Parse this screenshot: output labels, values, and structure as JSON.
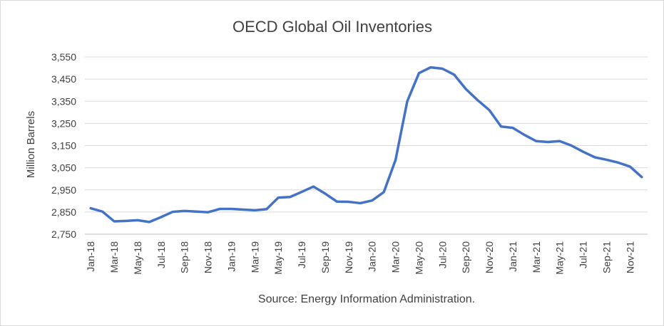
{
  "chart_data": {
    "type": "line",
    "title": "OECD Global Oil Inventories",
    "ylabel": "Million Barrels",
    "xlabel": "",
    "source": "Source: Energy Information Administration.",
    "ylim": [
      2750,
      3550
    ],
    "yticks": [
      2750,
      2850,
      2950,
      3050,
      3150,
      3250,
      3350,
      3450,
      3550
    ],
    "ytick_labels": [
      "2,750",
      "2,850",
      "2,950",
      "3,050",
      "3,150",
      "3,250",
      "3,350",
      "3,450",
      "3,550"
    ],
    "x": [
      "Jan-18",
      "Feb-18",
      "Mar-18",
      "Apr-18",
      "May-18",
      "Jun-18",
      "Jul-18",
      "Aug-18",
      "Sep-18",
      "Oct-18",
      "Nov-18",
      "Dec-18",
      "Jan-19",
      "Feb-19",
      "Mar-19",
      "Apr-19",
      "May-19",
      "Jun-19",
      "Jul-19",
      "Aug-19",
      "Sep-19",
      "Oct-19",
      "Nov-19",
      "Dec-19",
      "Jan-20",
      "Feb-20",
      "Mar-20",
      "Apr-20",
      "May-20",
      "Jun-20",
      "Jul-20",
      "Aug-20",
      "Sep-20",
      "Oct-20",
      "Nov-20",
      "Dec-20",
      "Jan-21",
      "Feb-21",
      "Mar-21",
      "Apr-21",
      "May-21",
      "Jun-21",
      "Jul-21",
      "Aug-21",
      "Sep-21",
      "Oct-21",
      "Nov-21",
      "Dec-21"
    ],
    "xtick_labels": [
      "Jan-18",
      "Mar-18",
      "May-18",
      "Jul-18",
      "Sep-18",
      "Nov-18",
      "Jan-19",
      "Mar-19",
      "May-19",
      "Jul-19",
      "Sep-19",
      "Nov-19",
      "Jan-20",
      "Mar-20",
      "May-20",
      "Jul-20",
      "Sep-20",
      "Nov-20",
      "Jan-21",
      "Mar-21",
      "May-21",
      "Jul-21",
      "Sep-21",
      "Nov-21"
    ],
    "series": [
      {
        "color": "#4472c4",
        "values": [
          2867,
          2852,
          2808,
          2810,
          2813,
          2805,
          2827,
          2851,
          2855,
          2852,
          2849,
          2864,
          2864,
          2861,
          2858,
          2863,
          2915,
          2918,
          2941,
          2965,
          2933,
          2897,
          2896,
          2890,
          2902,
          2940,
          3085,
          3350,
          3477,
          3503,
          3497,
          3470,
          3405,
          3355,
          3310,
          3236,
          3230,
          3198,
          3170,
          3166,
          3170,
          3150,
          3122,
          3097,
          3086,
          3073,
          3055,
          3008
        ]
      }
    ],
    "grid": true,
    "legend": "none"
  }
}
